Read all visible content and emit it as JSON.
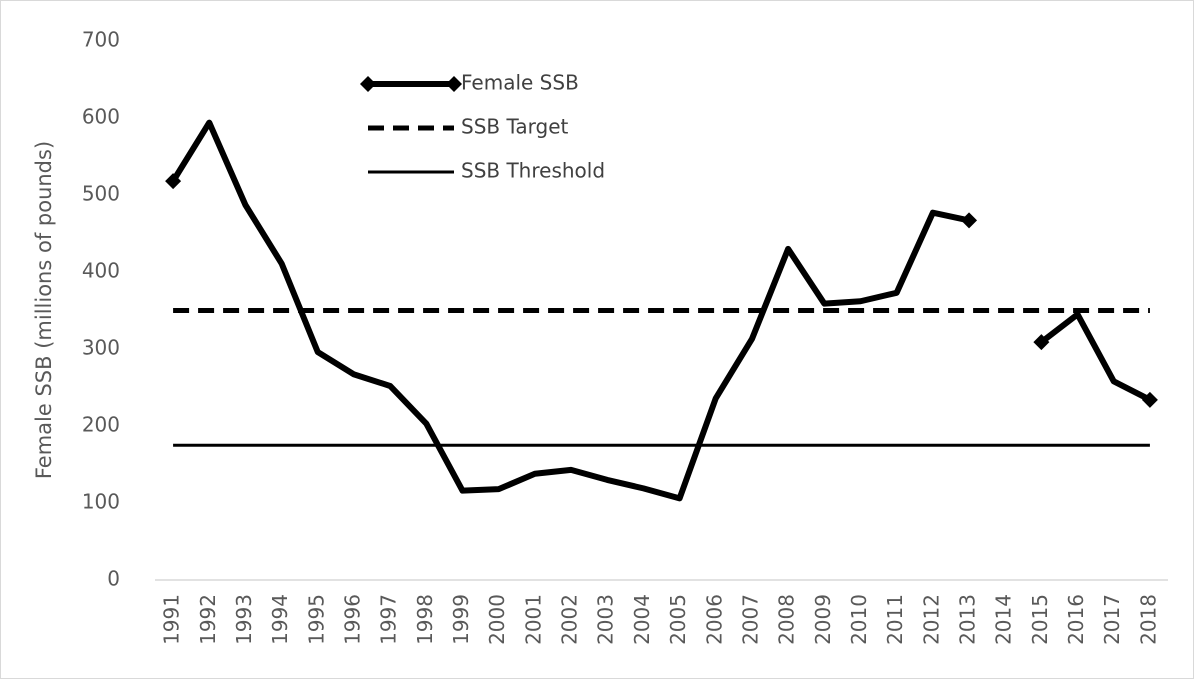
{
  "chart_data": {
    "type": "line",
    "y_label": "Female SSB (millions of pounds)",
    "categories": [
      "1991",
      "1992",
      "1993",
      "1994",
      "1995",
      "1996",
      "1997",
      "1998",
      "1999",
      "2000",
      "2001",
      "2002",
      "2003",
      "2004",
      "2005",
      "2006",
      "2007",
      "2008",
      "2009",
      "2010",
      "2011",
      "2012",
      "2013",
      "2014",
      "2015",
      "2016",
      "2017",
      "2018"
    ],
    "series": [
      {
        "name": "Female SSB",
        "color": "#000000",
        "style": "solid-markers",
        "values": [
          518,
          594,
          487,
          411,
          296,
          267,
          252,
          203,
          116,
          118,
          138,
          143,
          130,
          119,
          106,
          236,
          313,
          430,
          359,
          362,
          373,
          477,
          467,
          null,
          309,
          345,
          258,
          234
        ]
      },
      {
        "name": "SSB Target",
        "color": "#000000",
        "style": "dashed",
        "values": [
          350,
          350,
          350,
          350,
          350,
          350,
          350,
          350,
          350,
          350,
          350,
          350,
          350,
          350,
          350,
          350,
          350,
          350,
          350,
          350,
          350,
          350,
          350,
          350,
          350,
          350,
          350,
          350
        ]
      },
      {
        "name": "SSB Threshold",
        "color": "#000000",
        "style": "thin",
        "values": [
          175,
          175,
          175,
          175,
          175,
          175,
          175,
          175,
          175,
          175,
          175,
          175,
          175,
          175,
          175,
          175,
          175,
          175,
          175,
          175,
          175,
          175,
          175,
          175,
          175,
          175,
          175,
          175
        ]
      }
    ],
    "ylim": [
      0,
      700
    ],
    "yticks": [
      0,
      100,
      200,
      300,
      400,
      500,
      600,
      700
    ],
    "grid": false,
    "legend": "top-left"
  }
}
